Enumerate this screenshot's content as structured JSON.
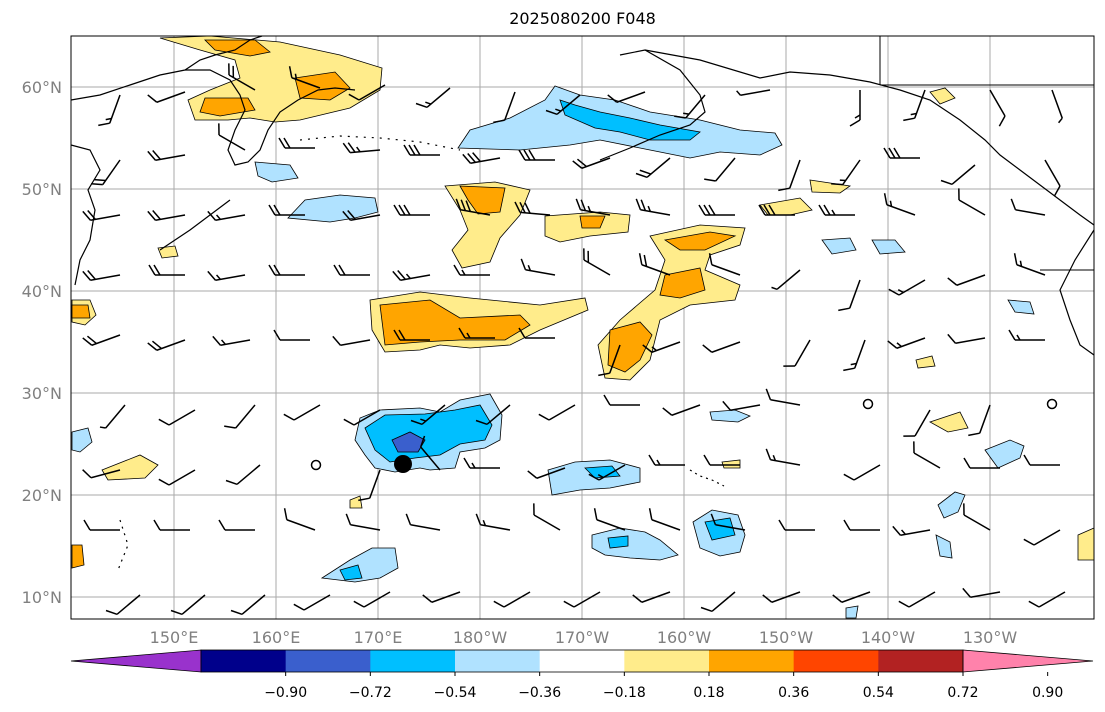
{
  "title": "2025080200 F048",
  "map": {
    "lat_labels": [
      "60°N",
      "50°N",
      "40°N",
      "30°N",
      "20°N",
      "10°N"
    ],
    "lon_labels": [
      "150°E",
      "160°E",
      "170°E",
      "180°W",
      "170°W",
      "160°W",
      "150°W",
      "140°W",
      "130°W"
    ],
    "grid": true,
    "marked_location": {
      "lon": 172.7,
      "lat": 23.1,
      "label": ""
    }
  },
  "colorbar": {
    "tick_labels": [
      "−0.90",
      "−0.72",
      "−0.54",
      "−0.36",
      "−0.18",
      "0.18",
      "0.36",
      "0.54",
      "0.72",
      "0.90"
    ],
    "colors": [
      "#9932cc",
      "#00008b",
      "#3a5fcd",
      "#00bfff",
      "#b0e2ff",
      "#ffffff",
      "#ffec8b",
      "#ffa500",
      "#ff4500",
      "#b22222",
      "#ff82ab"
    ],
    "extend": "both"
  },
  "legend_colors": {
    "neg_strong": "#3a5fcd",
    "neg_mid": "#00bfff",
    "neg_weak": "#b0e2ff",
    "pos_weak": "#ffec8b",
    "pos_mid": "#ffa500",
    "pos_strong": "#ff4500"
  }
}
